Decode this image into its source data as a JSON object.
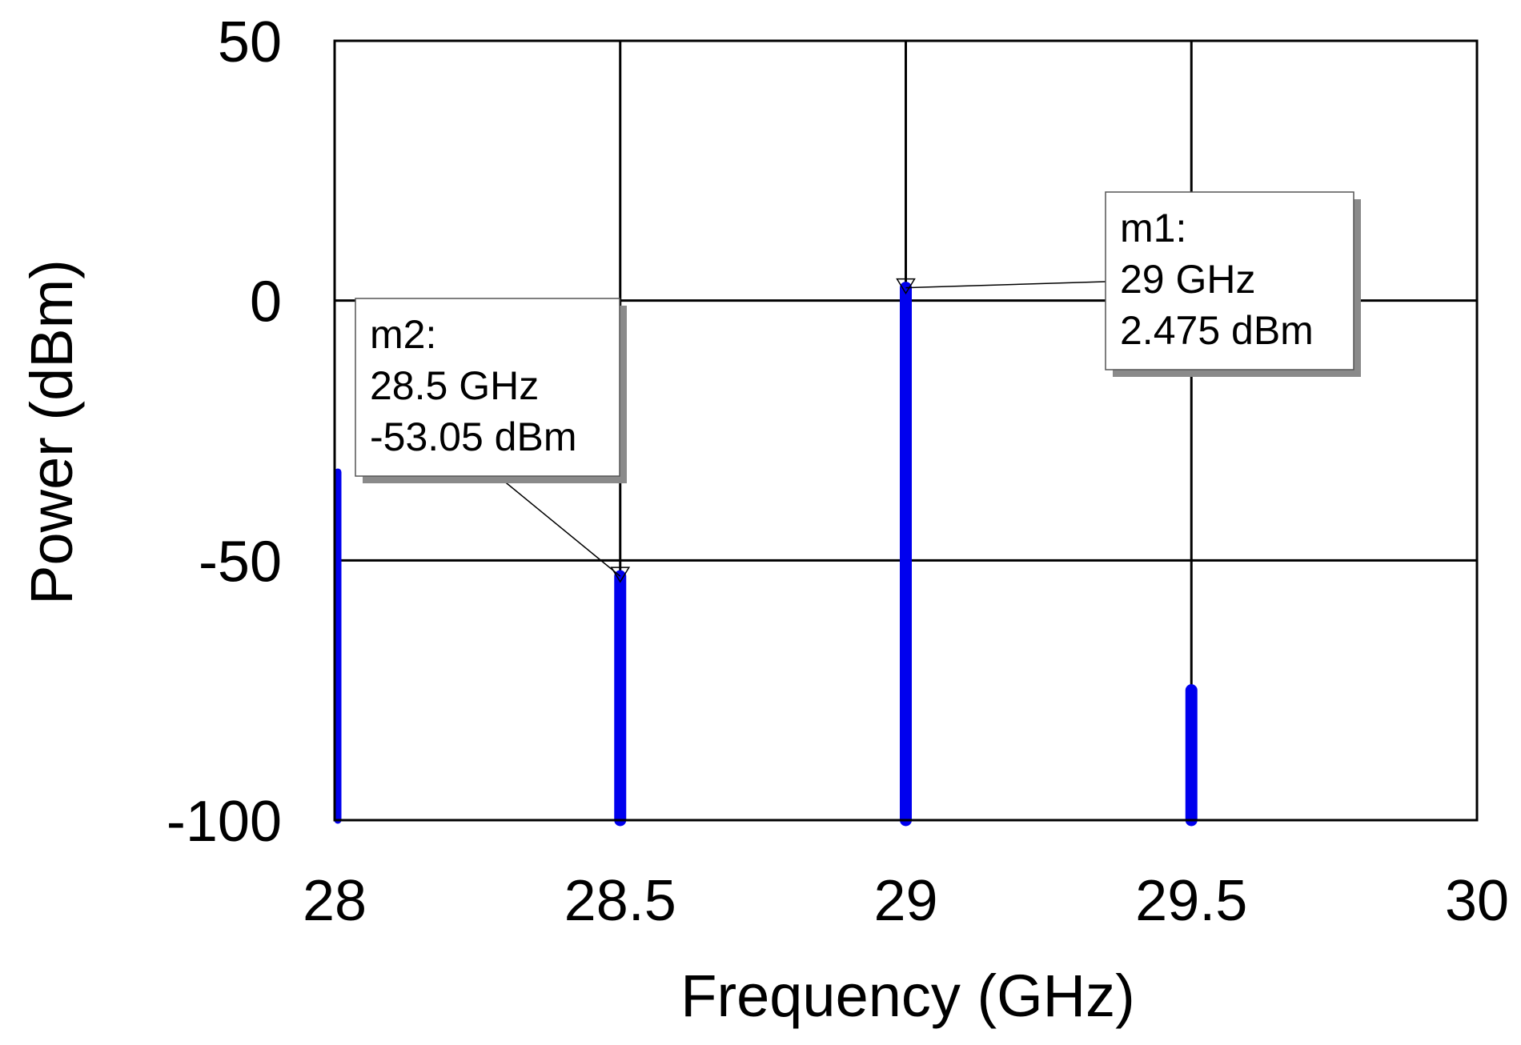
{
  "chart_data": {
    "type": "bar",
    "xlabel": "Frequency (GHz)",
    "ylabel": "Power (dBm)",
    "xlim": [
      28,
      30
    ],
    "ylim": [
      -100,
      50
    ],
    "xticks": [
      28,
      28.5,
      29,
      29.5,
      30
    ],
    "yticks": [
      50,
      0,
      -50,
      -100
    ],
    "xtick_labels": [
      "28",
      "28.5",
      "29",
      "29.5",
      "30"
    ],
    "ytick_labels": [
      "50",
      "0",
      "-50",
      "-100"
    ],
    "grid": true,
    "series": [
      {
        "x": [
          28,
          28.5,
          29,
          29.5
        ],
        "y": [
          -33,
          -53.05,
          2.475,
          -75
        ],
        "color": "#0000ee"
      }
    ],
    "markers": [
      {
        "name": "m1",
        "x": 29,
        "y": 2.475,
        "lines": [
          "m1:",
          "29 GHz",
          "2.475 dBm"
        ]
      },
      {
        "name": "m2",
        "x": 28.5,
        "y": -53.05,
        "lines": [
          "m2:",
          "28.5 GHz",
          "-53.05 dBm"
        ]
      }
    ]
  }
}
